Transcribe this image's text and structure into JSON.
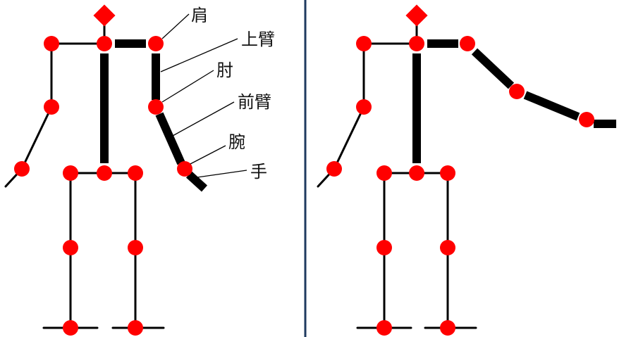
{
  "labels": {
    "shoulder": "肩",
    "upper_arm": "上臂",
    "elbow": "肘",
    "forearm": "前臂",
    "wrist": "腕",
    "hand": "手"
  },
  "colors": {
    "background": "#ffffff",
    "joint": "#ff0000",
    "thin_bone": "#000000",
    "thick_bone": "#000000",
    "divider": "#1f3a5f"
  },
  "left_figure": {
    "arm_pose": "hanging"
  },
  "right_figure": {
    "arm_pose": "raised"
  }
}
